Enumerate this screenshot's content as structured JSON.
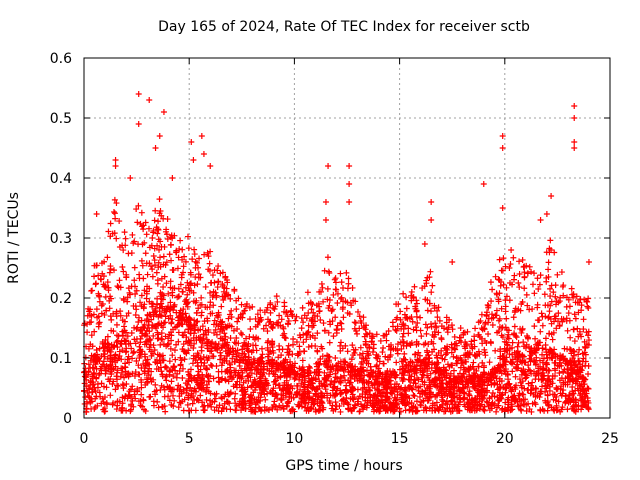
{
  "chart_data": {
    "type": "scatter",
    "title": "Day 165 of 2024, Rate Of TEC Index for receiver sctb",
    "xlabel": "GPS time / hours",
    "ylabel": "ROTI / TECUs",
    "xlim": [
      0,
      25
    ],
    "ylim": [
      0,
      0.6
    ],
    "xticks": [
      0,
      5,
      10,
      15,
      20,
      25
    ],
    "xtick_labels": [
      "0",
      "5",
      "10",
      "15",
      "20",
      "25"
    ],
    "yticks": [
      0,
      0.1,
      0.2,
      0.3,
      0.4,
      0.5,
      0.6
    ],
    "ytick_labels": [
      "0",
      "0.1",
      "0.2",
      "0.3",
      "0.4",
      "0.5",
      "0.6"
    ],
    "grid": true,
    "marker": "+",
    "color": "#ff0000",
    "x_data_range": [
      0,
      24
    ],
    "envelope": {
      "hours": [
        0,
        0.5,
        1,
        1.5,
        2,
        2.5,
        3,
        3.5,
        4,
        4.5,
        5,
        5.5,
        6,
        6.5,
        7,
        7.5,
        8,
        8.5,
        9,
        9.5,
        10,
        10.5,
        11,
        11.5,
        12,
        12.5,
        13,
        13.5,
        14,
        14.5,
        15,
        15.5,
        16,
        16.5,
        17,
        17.5,
        18,
        18.5,
        19,
        19.5,
        20,
        20.5,
        21,
        21.5,
        22,
        22.5,
        23,
        23.5,
        24
      ],
      "median": [
        0.06,
        0.09,
        0.11,
        0.12,
        0.12,
        0.13,
        0.14,
        0.15,
        0.16,
        0.15,
        0.14,
        0.13,
        0.12,
        0.11,
        0.1,
        0.09,
        0.08,
        0.08,
        0.08,
        0.08,
        0.07,
        0.07,
        0.07,
        0.08,
        0.08,
        0.08,
        0.07,
        0.07,
        0.06,
        0.06,
        0.07,
        0.08,
        0.08,
        0.08,
        0.07,
        0.06,
        0.06,
        0.06,
        0.06,
        0.07,
        0.09,
        0.09,
        0.09,
        0.1,
        0.1,
        0.09,
        0.08,
        0.07,
        0.06
      ],
      "upper": [
        0.16,
        0.25,
        0.28,
        0.38,
        0.3,
        0.36,
        0.34,
        0.36,
        0.34,
        0.3,
        0.3,
        0.27,
        0.28,
        0.25,
        0.22,
        0.2,
        0.18,
        0.18,
        0.2,
        0.2,
        0.19,
        0.2,
        0.2,
        0.26,
        0.25,
        0.26,
        0.18,
        0.15,
        0.14,
        0.15,
        0.2,
        0.21,
        0.22,
        0.24,
        0.17,
        0.15,
        0.15,
        0.14,
        0.18,
        0.25,
        0.26,
        0.27,
        0.26,
        0.27,
        0.3,
        0.28,
        0.22,
        0.2,
        0.2
      ]
    },
    "peaks": [
      {
        "x": 1.5,
        "y": 0.43
      },
      {
        "x": 1.5,
        "y": 0.42
      },
      {
        "x": 2.6,
        "y": 0.54
      },
      {
        "x": 2.6,
        "y": 0.49
      },
      {
        "x": 3.1,
        "y": 0.53
      },
      {
        "x": 3.8,
        "y": 0.51
      },
      {
        "x": 3.6,
        "y": 0.47
      },
      {
        "x": 3.4,
        "y": 0.45
      },
      {
        "x": 5.1,
        "y": 0.46
      },
      {
        "x": 5.6,
        "y": 0.47
      },
      {
        "x": 5.2,
        "y": 0.43
      },
      {
        "x": 6.0,
        "y": 0.42
      },
      {
        "x": 5.7,
        "y": 0.44
      },
      {
        "x": 0.6,
        "y": 0.34
      },
      {
        "x": 2.2,
        "y": 0.4
      },
      {
        "x": 4.2,
        "y": 0.4
      },
      {
        "x": 11.6,
        "y": 0.42
      },
      {
        "x": 11.5,
        "y": 0.36
      },
      {
        "x": 11.5,
        "y": 0.33
      },
      {
        "x": 12.6,
        "y": 0.42
      },
      {
        "x": 12.6,
        "y": 0.39
      },
      {
        "x": 12.6,
        "y": 0.36
      },
      {
        "x": 16.5,
        "y": 0.36
      },
      {
        "x": 16.5,
        "y": 0.33
      },
      {
        "x": 16.2,
        "y": 0.29
      },
      {
        "x": 17.5,
        "y": 0.26
      },
      {
        "x": 19.0,
        "y": 0.39
      },
      {
        "x": 19.9,
        "y": 0.47
      },
      {
        "x": 19.9,
        "y": 0.45
      },
      {
        "x": 19.9,
        "y": 0.35
      },
      {
        "x": 20.3,
        "y": 0.28
      },
      {
        "x": 22.0,
        "y": 0.34
      },
      {
        "x": 22.2,
        "y": 0.37
      },
      {
        "x": 23.3,
        "y": 0.52
      },
      {
        "x": 23.3,
        "y": 0.5
      },
      {
        "x": 23.3,
        "y": 0.46
      },
      {
        "x": 23.3,
        "y": 0.45
      },
      {
        "x": 21.7,
        "y": 0.33
      },
      {
        "x": 24.0,
        "y": 0.26
      }
    ]
  }
}
